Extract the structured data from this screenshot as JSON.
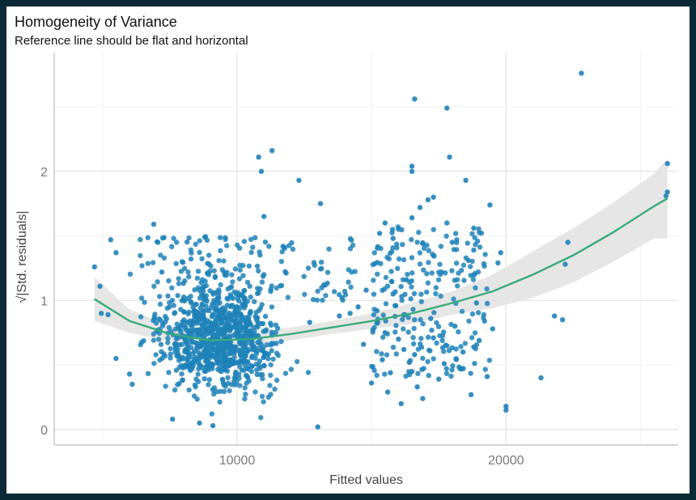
{
  "chart_data": {
    "type": "scatter",
    "title": "Homogeneity of Variance",
    "subtitle": "Reference line should be flat and horizontal",
    "xlabel": "Fitted values",
    "ylabel": "√|Std. residuals|",
    "xlim": [
      3200,
      26400
    ],
    "ylim": [
      -0.12,
      2.92
    ],
    "x_ticks": [
      10000,
      20000
    ],
    "y_ticks": [
      0,
      1,
      2
    ],
    "grid": true,
    "point_color": "#1f82b8",
    "smooth_color": "#3aaa7a",
    "band_color": "#e3e3e3",
    "smooth_curve": {
      "x": [
        4700,
        6000,
        7500,
        9000,
        10500,
        12000,
        13500,
        15000,
        16500,
        18000,
        19500,
        21000,
        22500,
        24000,
        25500,
        26000
      ],
      "y": [
        1.01,
        0.84,
        0.74,
        0.69,
        0.7,
        0.74,
        0.79,
        0.84,
        0.9,
        0.98,
        1.07,
        1.2,
        1.35,
        1.53,
        1.73,
        1.79
      ]
    },
    "confidence_band": {
      "x": [
        4700,
        6000,
        7500,
        9000,
        10500,
        12000,
        13500,
        15000,
        16500,
        18000,
        19500,
        21000,
        22500,
        24000,
        25500,
        26000
      ],
      "upper": [
        1.18,
        0.93,
        0.8,
        0.74,
        0.75,
        0.79,
        0.84,
        0.9,
        0.98,
        1.07,
        1.2,
        1.38,
        1.56,
        1.76,
        1.98,
        2.1
      ],
      "lower": [
        0.84,
        0.75,
        0.68,
        0.64,
        0.65,
        0.69,
        0.74,
        0.78,
        0.82,
        0.89,
        0.94,
        1.02,
        1.14,
        1.3,
        1.48,
        1.48
      ]
    },
    "points": {
      "x": [
        26000,
        26000,
        25950,
        22800,
        22300,
        22200,
        22100,
        21800,
        21300,
        20000,
        20000,
        18800,
        17800,
        16600,
        16500,
        17900,
        16500,
        13000,
        11300,
        10800,
        10900,
        9100,
        13100,
        12300,
        11000,
        18500,
        17300,
        17100,
        15500,
        16800,
        16500,
        18000,
        19400,
        18800,
        19800,
        19700,
        17800,
        15800,
        15300,
        16900,
        4700,
        4900,
        5200,
        6000,
        6100,
        5500,
        5300,
        7200,
        6900,
        8600,
        5500,
        4950,
        8800,
        7600,
        12700,
        13800,
        14200,
        14500,
        13900,
        15500,
        16200,
        16600,
        17300,
        18100,
        19000,
        15000,
        15700,
        16400,
        17500,
        18300,
        19300,
        16100,
        16900,
        18700,
        15200,
        14800,
        16300,
        15900,
        17600,
        18600,
        19200,
        18400,
        17700,
        16700,
        15600,
        14700,
        19500,
        15400,
        17200,
        16000,
        18800,
        15800,
        18900,
        16500
      ],
      "y": [
        2.06,
        1.84,
        1.81,
        2.76,
        1.45,
        1.28,
        0.85,
        0.88,
        0.4,
        0.18,
        0.15,
        1.39,
        2.49,
        2.56,
        2.04,
        2.11,
        2.0,
        0.02,
        2.16,
        2.11,
        2.0,
        0.03,
        1.75,
        1.93,
        1.65,
        1.93,
        1.8,
        1.78,
        1.6,
        1.72,
        1.64,
        1.45,
        1.74,
        1.56,
        1.37,
        1.29,
        1.6,
        1.48,
        1.52,
        1.44,
        1.26,
        1.11,
        0.89,
        0.43,
        0.35,
        1.37,
        1.47,
        1.22,
        1.59,
        0.05,
        0.55,
        0.9,
        1.49,
        0.08,
        0.83,
        0.88,
        0.9,
        0.95,
        1.02,
        0.75,
        0.62,
        0.58,
        0.71,
        0.8,
        0.69,
        0.36,
        0.44,
        0.52,
        0.39,
        0.47,
        0.41,
        0.2,
        0.24,
        0.27,
        0.92,
        1.08,
        1.16,
        0.96,
        1.22,
        1.31,
        0.84,
        0.6,
        0.51,
        0.33,
        0.29,
        0.66,
        0.78,
        0.54,
        0.86,
        0.7,
        0.64,
        1.05,
        0.98,
        0.45
      ]
    }
  }
}
